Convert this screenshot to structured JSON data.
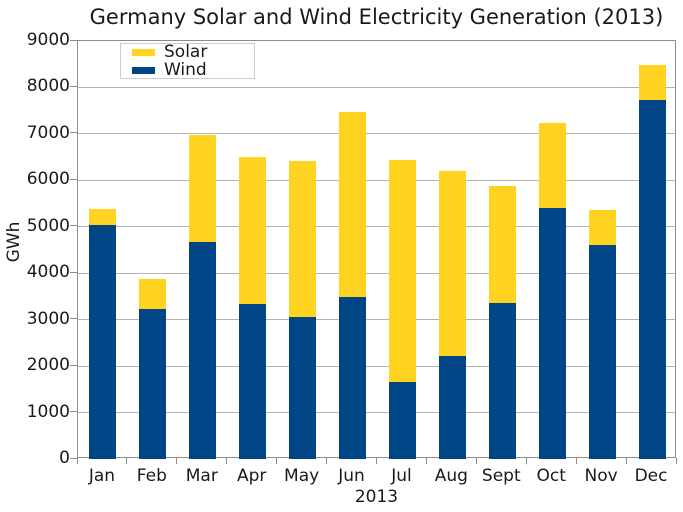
{
  "title": "Germany Solar and Wind Electricity Generation (2013)",
  "colors": {
    "solar": "#FFD320",
    "wind": "#004586",
    "gridline": "#B3B3B3",
    "axis": "#8C8C8C",
    "text": "#1A1A1A",
    "legend_border": "#CCCCCC"
  },
  "legend": {
    "position": "top-left",
    "items": [
      {
        "label": "Solar",
        "color": "#FFD320"
      },
      {
        "label": "Wind",
        "color": "#004586"
      }
    ]
  },
  "y_axis": {
    "label": "GWh",
    "tick_labels": [
      "0",
      "1000",
      "2000",
      "3000",
      "4000",
      "5000",
      "6000",
      "7000",
      "8000",
      "9000"
    ]
  },
  "x_axis": {
    "label": "2013"
  },
  "chart_data": {
    "type": "bar",
    "stacked": true,
    "title": "Germany Solar and Wind Electricity Generation (2013)",
    "xlabel": "2013",
    "ylabel": "GWh",
    "ylim": [
      0,
      9000
    ],
    "ytick_step": 1000,
    "grid": true,
    "legend_position": "top-left",
    "categories": [
      "Jan",
      "Feb",
      "Mar",
      "Apr",
      "May",
      "Jun",
      "Jul",
      "Aug",
      "Sept",
      "Oct",
      "Nov",
      "Dec"
    ],
    "series": [
      {
        "name": "Wind",
        "color": "#004586",
        "values": [
          5034,
          3226,
          4662,
          3331,
          3062,
          3480,
          1661,
          2218,
          3367,
          5413,
          4600,
          7740
        ]
      },
      {
        "name": "Solar",
        "color": "#FFD320",
        "values": [
          345,
          647,
          2324,
          3162,
          3354,
          3985,
          4769,
          3975,
          2516,
          1814,
          772,
          735
        ]
      }
    ]
  }
}
